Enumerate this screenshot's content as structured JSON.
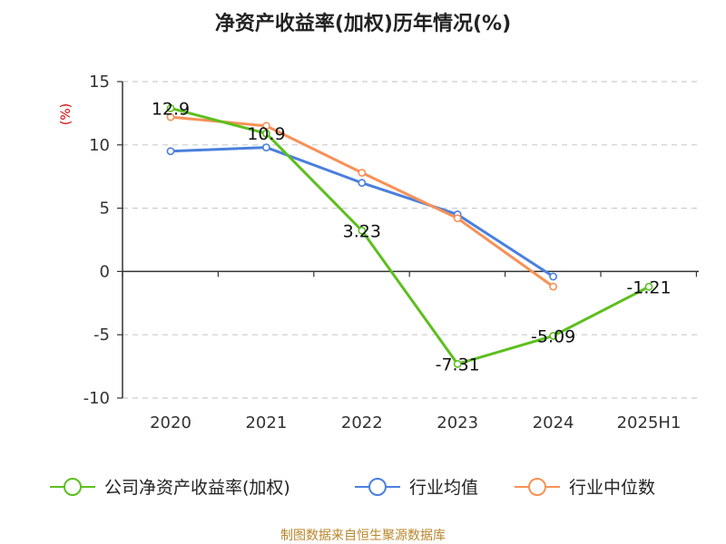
{
  "chart_data": {
    "type": "line",
    "title": "净资产收益率(加权)历年情况(%)",
    "ylabel": "(%)",
    "xlabel": "",
    "categories": [
      "2020",
      "2021",
      "2022",
      "2023",
      "2024",
      "2025H1"
    ],
    "yticks": [
      15,
      10,
      5,
      0,
      -5,
      -10
    ],
    "ylim": [
      -10,
      15
    ],
    "grid": true,
    "legend_position": "bottom",
    "series": [
      {
        "name": "公司净资产收益率(加权)",
        "color": "#5cbf1e",
        "values": [
          12.9,
          10.9,
          3.23,
          -7.31,
          -5.09,
          -1.21
        ],
        "labels": [
          "12.9",
          "10.9",
          "3.23",
          "-7.31",
          "-5.09",
          "-1.21"
        ]
      },
      {
        "name": "行业均值",
        "color": "#4a7fdd",
        "values": [
          9.5,
          9.8,
          7.0,
          4.5,
          -0.4,
          null
        ]
      },
      {
        "name": "行业中位数",
        "color": "#f79156",
        "values": [
          12.2,
          11.5,
          7.8,
          4.2,
          -1.2,
          null
        ]
      }
    ],
    "source": "制图数据来自恒生聚源数据库"
  }
}
